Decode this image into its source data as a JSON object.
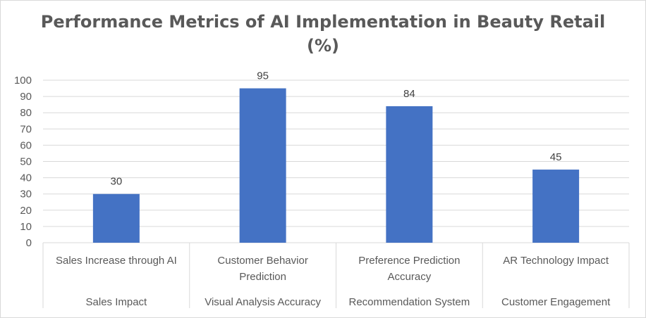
{
  "chart_data": {
    "type": "bar",
    "title_line1": "Performance Metrics of AI Implementation in Beauty Retail",
    "title_line2": "(%)",
    "xlabel": "",
    "ylabel": "",
    "ylim": [
      0,
      100
    ],
    "yticks": [
      0,
      10,
      20,
      30,
      40,
      50,
      60,
      70,
      80,
      90,
      100
    ],
    "grid": true,
    "legend": "none",
    "bar_color": "#4472c4",
    "categories": [
      {
        "label_lines": [
          "Sales Increase through AI"
        ],
        "group": "Sales Impact"
      },
      {
        "label_lines": [
          "Customer Behavior",
          "Prediction"
        ],
        "group": "Visual Analysis Accuracy"
      },
      {
        "label_lines": [
          "Preference Prediction",
          "Accuracy"
        ],
        "group": "Recommendation System"
      },
      {
        "label_lines": [
          "AR Technology Impact"
        ],
        "group": "Customer Engagement"
      }
    ],
    "values": [
      30,
      95,
      84,
      45
    ]
  }
}
